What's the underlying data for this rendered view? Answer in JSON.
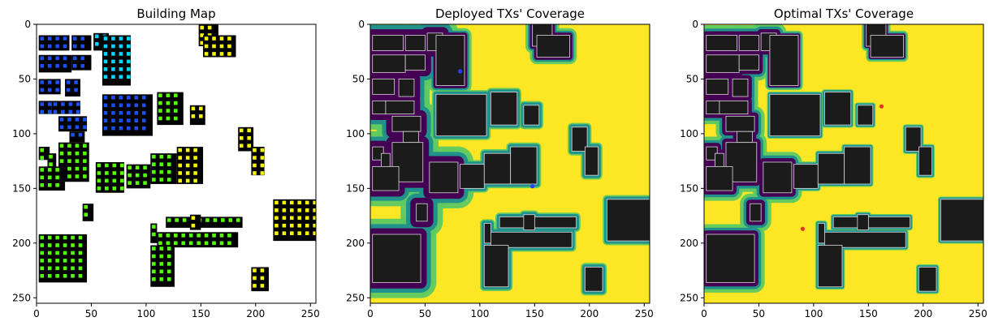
{
  "figure": {
    "palette": {
      "map_building": "#000000",
      "map_background": "#ffffff",
      "map_point_colors": [
        "#1a4ff2",
        "#00d7ff",
        "#55ff00",
        "#f5f500"
      ],
      "viridis_low": "#440154",
      "viridis_mid1": "#21918c",
      "viridis_mid2": "#5ec962",
      "viridis_high": "#fde725",
      "building_fill": "#1b1b1b",
      "deployed_tx_marker": "#2e3cff",
      "optimal_tx_marker": "#e8321e"
    }
  },
  "chart_data": [
    {
      "type": "heatmap",
      "title": "Building Map",
      "xlim": [
        0,
        255
      ],
      "ylim": [
        255,
        0
      ],
      "x_ticks": [
        0,
        50,
        100,
        150,
        200,
        250
      ],
      "y_ticks": [
        0,
        50,
        100,
        150,
        200,
        250
      ]
    },
    {
      "type": "heatmap",
      "title": "Deployed TXs' Coverage",
      "xlim": [
        0,
        255
      ],
      "ylim": [
        255,
        0
      ],
      "x_ticks": [
        0,
        50,
        100,
        150,
        200,
        250
      ],
      "y_ticks": [
        0,
        50,
        100,
        150,
        200,
        250
      ],
      "tx_points": [
        [
          82,
          43
        ],
        [
          148,
          148
        ]
      ]
    },
    {
      "type": "heatmap",
      "title": "Optimal TXs' Coverage",
      "xlim": [
        0,
        255
      ],
      "ylim": [
        255,
        0
      ],
      "x_ticks": [
        0,
        50,
        100,
        150,
        200,
        250
      ],
      "y_ticks": [
        0,
        50,
        100,
        150,
        200,
        250
      ],
      "tx_points": [
        [
          162,
          75
        ],
        [
          90,
          187
        ]
      ]
    }
  ]
}
